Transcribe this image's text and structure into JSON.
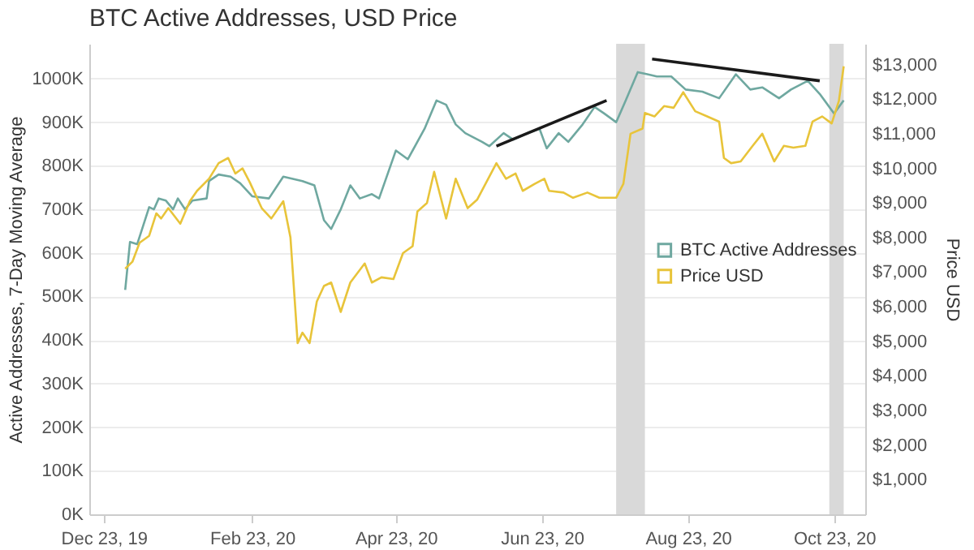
{
  "chart_data": {
    "type": "line",
    "title": "BTC Active Addresses, USD Price",
    "ylabel": "Active Addresses, 7-Day Moving Average",
    "y2label": "Price USD",
    "xlim": [
      "2019-12-17",
      "2020-11-05"
    ],
    "xticks": [
      {
        "value": "2019-12-23",
        "label": "Dec 23, 19"
      },
      {
        "value": "2020-02-23",
        "label": "Feb 23, 20"
      },
      {
        "value": "2020-04-23",
        "label": "Apr 23, 20"
      },
      {
        "value": "2020-06-23",
        "label": "Jun 23, 20"
      },
      {
        "value": "2020-08-23",
        "label": "Aug 23, 20"
      },
      {
        "value": "2020-10-23",
        "label": "Oct 23, 20"
      }
    ],
    "ylim": [
      0,
      1080000
    ],
    "yticks": [
      {
        "value": 0,
        "label": "0K"
      },
      {
        "value": 100000,
        "label": "100K"
      },
      {
        "value": 200000,
        "label": "200K"
      },
      {
        "value": 300000,
        "label": "300K"
      },
      {
        "value": 400000,
        "label": "400K"
      },
      {
        "value": 500000,
        "label": "500K"
      },
      {
        "value": 600000,
        "label": "600K"
      },
      {
        "value": 700000,
        "label": "700K"
      },
      {
        "value": 800000,
        "label": "800K"
      },
      {
        "value": 900000,
        "label": "900K"
      },
      {
        "value": 1000000,
        "label": "1000K"
      }
    ],
    "y2lim": [
      0,
      13600
    ],
    "y2ticks": [
      {
        "value": 1000,
        "label": "$1,000"
      },
      {
        "value": 2000,
        "label": "$2,000"
      },
      {
        "value": 3000,
        "label": "$3,000"
      },
      {
        "value": 4000,
        "label": "$4,000"
      },
      {
        "value": 5000,
        "label": "$5,000"
      },
      {
        "value": 6000,
        "label": "$6,000"
      },
      {
        "value": 7000,
        "label": "$7,000"
      },
      {
        "value": 8000,
        "label": "$8,000"
      },
      {
        "value": 9000,
        "label": "$9,000"
      },
      {
        "value": 10000,
        "label": "$10,000"
      },
      {
        "value": 11000,
        "label": "$11,000"
      },
      {
        "value": 12000,
        "label": "$12,000"
      },
      {
        "value": 13000,
        "label": "$13,000"
      }
    ],
    "grid": "y",
    "legend": "right",
    "bands": [
      {
        "axis": "x",
        "from": "2020-07-24",
        "to": "2020-08-05",
        "color": "#d9d9d9"
      },
      {
        "axis": "x",
        "from": "2020-10-21",
        "to": "2020-10-27",
        "color": "#d9d9d9"
      }
    ],
    "series": [
      {
        "name": "BTC Active Addresses",
        "color": "#6fa8a0",
        "x": [
          "2020-01-01",
          "2020-01-03",
          "2020-01-06",
          "2020-01-11",
          "2020-01-13",
          "2020-01-15",
          "2020-01-18",
          "2020-01-21",
          "2020-01-23",
          "2020-01-26",
          "2020-01-29",
          "2020-02-04",
          "2020-02-05",
          "2020-02-09",
          "2020-02-14",
          "2020-02-18",
          "2020-02-23",
          "2020-03-01",
          "2020-03-07",
          "2020-03-11",
          "2020-03-15",
          "2020-03-20",
          "2020-03-24",
          "2020-03-27",
          "2020-03-31",
          "2020-04-04",
          "2020-04-08",
          "2020-04-13",
          "2020-04-16",
          "2020-04-23",
          "2020-04-28",
          "2020-05-05",
          "2020-05-10",
          "2020-05-14",
          "2020-05-18",
          "2020-05-22",
          "2020-05-29",
          "2020-06-01",
          "2020-06-07",
          "2020-06-11",
          "2020-06-17",
          "2020-06-22",
          "2020-06-25",
          "2020-06-30",
          "2020-07-04",
          "2020-07-10",
          "2020-07-15",
          "2020-07-19",
          "2020-07-24",
          "2020-07-28",
          "2020-08-02",
          "2020-08-06",
          "2020-08-10",
          "2020-08-16",
          "2020-08-22",
          "2020-08-29",
          "2020-09-05",
          "2020-09-12",
          "2020-09-18",
          "2020-09-23",
          "2020-09-30",
          "2020-10-05",
          "2020-10-12",
          "2020-10-17",
          "2020-10-23",
          "2020-10-27"
        ],
        "values": [
          515000,
          625000,
          620000,
          705000,
          700000,
          725000,
          720000,
          700000,
          725000,
          700000,
          720000,
          725000,
          765000,
          780000,
          775000,
          760000,
          730000,
          725000,
          775000,
          770000,
          765000,
          755000,
          675000,
          655000,
          700000,
          755000,
          725000,
          735000,
          725000,
          835000,
          815000,
          885000,
          950000,
          940000,
          895000,
          875000,
          855000,
          845000,
          875000,
          860000,
          875000,
          885000,
          840000,
          875000,
          855000,
          895000,
          935000,
          920000,
          900000,
          950000,
          1015000,
          1010000,
          1005000,
          1005000,
          975000,
          970000,
          955000,
          1010000,
          975000,
          980000,
          955000,
          975000,
          995000,
          965000,
          920000,
          950000
        ]
      },
      {
        "name": "Price USD",
        "color": "#e8c43a",
        "axis": "y2",
        "x": [
          "2020-01-01",
          "2020-01-04",
          "2020-01-07",
          "2020-01-11",
          "2020-01-14",
          "2020-01-16",
          "2020-01-19",
          "2020-01-24",
          "2020-01-28",
          "2020-01-31",
          "2020-02-05",
          "2020-02-09",
          "2020-02-13",
          "2020-02-16",
          "2020-02-19",
          "2020-02-22",
          "2020-02-27",
          "2020-03-02",
          "2020-03-07",
          "2020-03-10",
          "2020-03-13",
          "2020-03-15",
          "2020-03-18",
          "2020-03-21",
          "2020-03-24",
          "2020-03-27",
          "2020-03-31",
          "2020-04-04",
          "2020-04-10",
          "2020-04-13",
          "2020-04-17",
          "2020-04-22",
          "2020-04-26",
          "2020-04-30",
          "2020-05-02",
          "2020-05-06",
          "2020-05-09",
          "2020-05-14",
          "2020-05-18",
          "2020-05-23",
          "2020-05-27",
          "2020-06-04",
          "2020-06-08",
          "2020-06-12",
          "2020-06-15",
          "2020-06-20",
          "2020-06-24",
          "2020-06-26",
          "2020-07-02",
          "2020-07-06",
          "2020-07-12",
          "2020-07-17",
          "2020-07-24",
          "2020-07-27",
          "2020-07-30",
          "2020-08-04",
          "2020-08-05",
          "2020-08-09",
          "2020-08-13",
          "2020-08-17",
          "2020-08-21",
          "2020-08-26",
          "2020-08-31",
          "2020-09-05",
          "2020-09-07",
          "2020-09-10",
          "2020-09-14",
          "2020-09-19",
          "2020-09-23",
          "2020-09-28",
          "2020-10-02",
          "2020-10-06",
          "2020-10-11",
          "2020-10-14",
          "2020-10-18",
          "2020-10-22",
          "2020-10-25",
          "2020-10-27"
        ],
        "values": [
          7100,
          7300,
          7850,
          8050,
          8700,
          8550,
          8850,
          8400,
          9050,
          9350,
          9700,
          10150,
          10300,
          9850,
          10000,
          9600,
          8850,
          8550,
          9050,
          8000,
          4950,
          5250,
          4950,
          6150,
          6600,
          6700,
          5850,
          6700,
          7250,
          6700,
          6850,
          6800,
          7550,
          7750,
          8750,
          9000,
          9900,
          8550,
          9700,
          8850,
          9100,
          10150,
          9700,
          9850,
          9350,
          9550,
          9700,
          9350,
          9300,
          9150,
          9300,
          9150,
          9150,
          9550,
          11000,
          11150,
          11600,
          11500,
          11800,
          11750,
          12200,
          11650,
          11500,
          11350,
          10300,
          10150,
          10200,
          10650,
          11000,
          10200,
          10650,
          10600,
          10650,
          11350,
          11500,
          11300,
          11950,
          12950
        ]
      },
      {
        "type": "line",
        "color": "#1a1a1a",
        "x": [
          "2020-06-04",
          "2020-07-20"
        ],
        "values": [
          845000,
          950000
        ]
      },
      {
        "type": "line",
        "color": "#1a1a1a",
        "x": [
          "2020-08-08",
          "2020-10-17"
        ],
        "values": [
          1045000,
          995000
        ]
      }
    ]
  }
}
